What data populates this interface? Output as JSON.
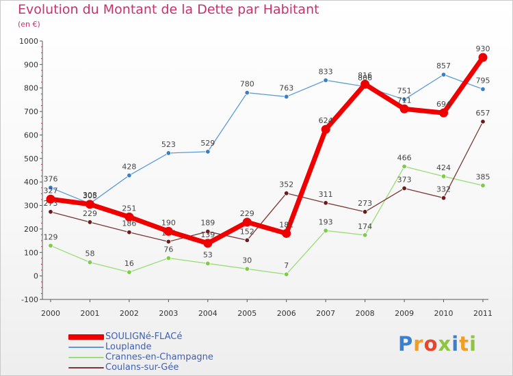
{
  "header": {
    "title": "Evolution du Montant de la Dette par Habitant",
    "subtitle": "(en €)"
  },
  "logo": {
    "letters": [
      {
        "ch": "P",
        "color": "#3a7fd0"
      },
      {
        "ch": "r",
        "color": "#f39c1f"
      },
      {
        "ch": "o",
        "color": "#e8452c"
      },
      {
        "ch": "x",
        "color": "#8cc63f"
      },
      {
        "ch": "i",
        "color": "#3a7fd0"
      },
      {
        "ch": "t",
        "color": "#f39c1f"
      },
      {
        "ch": "i",
        "color": "#8cc63f"
      }
    ]
  },
  "chart_data": {
    "type": "line",
    "title": "Evolution du Montant de la Dette par Habitant",
    "subtitle": "(en €)",
    "xlabel": "",
    "ylabel": "",
    "categories": [
      "2000",
      "2001",
      "2002",
      "2003",
      "2004",
      "2005",
      "2006",
      "2007",
      "2008",
      "2009",
      "2010",
      "2011"
    ],
    "ylim": [
      -100,
      1000
    ],
    "yticks": [
      -100,
      0,
      100,
      200,
      300,
      400,
      500,
      600,
      700,
      800,
      900,
      1000
    ],
    "grid": false,
    "legend_position": "bottom-left",
    "series": [
      {
        "name": "Louplande",
        "color": "#5b9bd5",
        "marker": "#3a7fc0",
        "values": [
          376,
          308,
          428,
          523,
          529,
          780,
          763,
          833,
          806,
          751,
          857,
          795
        ]
      },
      {
        "name": "Crannes-en-Champagne",
        "color": "#99dd77",
        "marker": "#7ccd45",
        "values": [
          129,
          58,
          16,
          76,
          53,
          30,
          7,
          193,
          174,
          466,
          424,
          385
        ]
      },
      {
        "name": "Coulans-sur-Gée",
        "color": "#7a3535",
        "marker": "#6b1b1b",
        "values": [
          273,
          229,
          186,
          146,
          189,
          152,
          352,
          311,
          273,
          373,
          332,
          657
        ]
      },
      {
        "name": "SOULIGNé-FLACé",
        "color": "#ee0000",
        "marker": "#ee0000",
        "values": [
          327,
          305,
          251,
          190,
          139,
          229,
          181,
          624,
          816,
          711,
          694,
          930
        ]
      }
    ]
  }
}
